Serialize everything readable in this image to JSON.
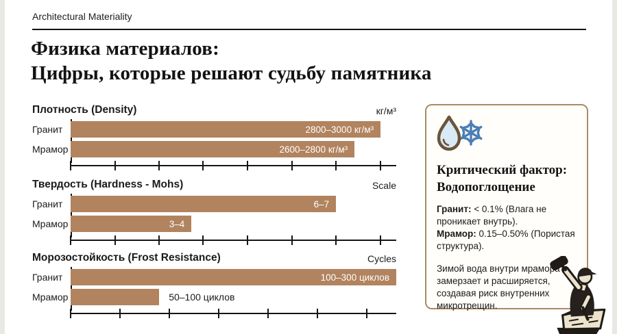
{
  "page": {
    "eyebrow": "Architectural Materiality",
    "title_line1": "Физика материалов:",
    "title_line2": "Цифры, которые решают судьбу памятника"
  },
  "colors": {
    "bar": "#b1835e",
    "panel_border": "#ab8a63",
    "text": "#1a1a1a",
    "bar_value_text": "#ffffff",
    "drop_outline": "#6b543a",
    "snowflake_blue": "#4b7fb5",
    "icon_fill_blue": "#d9e9f5"
  },
  "chart_data": [
    {
      "type": "bar",
      "title": "Плотность (Density)",
      "unit": "кг/м³",
      "categories": [
        "Гранит",
        "Мрамор"
      ],
      "values": [
        [
          2800,
          3000
        ],
        [
          2600,
          2800
        ]
      ],
      "value_labels": [
        "2800–3000 кг/м³",
        "2600–2800 кг/м³"
      ],
      "bar_widths": [
        "95.2%",
        "87.2%"
      ],
      "label_position": [
        "inside",
        "inside"
      ],
      "axis_ticks_pct": [
        0,
        13.6,
        27.2,
        40.7,
        54.3,
        67.9,
        81.5,
        95.1
      ],
      "legend": "none",
      "grid": "ticks-only"
    },
    {
      "type": "bar",
      "title": "Твердость (Hardness - Mohs)",
      "unit": "Scale",
      "categories": [
        "Гранит",
        "Мрамор"
      ],
      "values": [
        [
          6,
          7
        ],
        [
          3,
          4
        ]
      ],
      "value_labels": [
        "6–7",
        "3–4"
      ],
      "bar_widths": [
        "81.5%",
        "37.1%"
      ],
      "label_position": [
        "inside",
        "inside"
      ],
      "axis_ticks_pct": [
        0,
        13.6,
        27.2,
        40.7,
        54.3,
        67.9,
        81.5,
        95.1
      ],
      "legend": "none",
      "grid": "ticks-only"
    },
    {
      "type": "bar",
      "title": "Морозостойкость (Frost Resistance)",
      "unit": "Cycles",
      "categories": [
        "Гранит",
        "Мрамор"
      ],
      "values": [
        [
          100,
          300
        ],
        [
          50,
          100
        ]
      ],
      "value_labels": [
        "100–300 циклов",
        "50–100 циклов"
      ],
      "bar_widths": [
        "100%",
        "27.2%"
      ],
      "label_position": [
        "inside",
        "outside"
      ],
      "axis_ticks_pct": [
        0,
        15.2,
        30.3,
        45.5,
        60.6,
        75.8,
        90.9
      ],
      "legend": "none",
      "grid": "ticks-only"
    }
  ],
  "panel": {
    "icons": [
      "water-drop-icon",
      "snowflake-icon"
    ],
    "heading_line1": "Критический фактор:",
    "heading_line2": "Водопоглощение",
    "items": [
      {
        "term": "Гранит:",
        "desc": " < 0.1% (Влага не проникает внутрь)."
      },
      {
        "term": "Мрамор:",
        "desc": " 0.15–0.50% (Пористая структура)."
      }
    ],
    "note": "Зимой вода внутри мрамора замерзает и расширяется, создавая риск внутренних микротрещин."
  },
  "decor": {
    "illustration": "stonemason-carving-stone-block"
  }
}
